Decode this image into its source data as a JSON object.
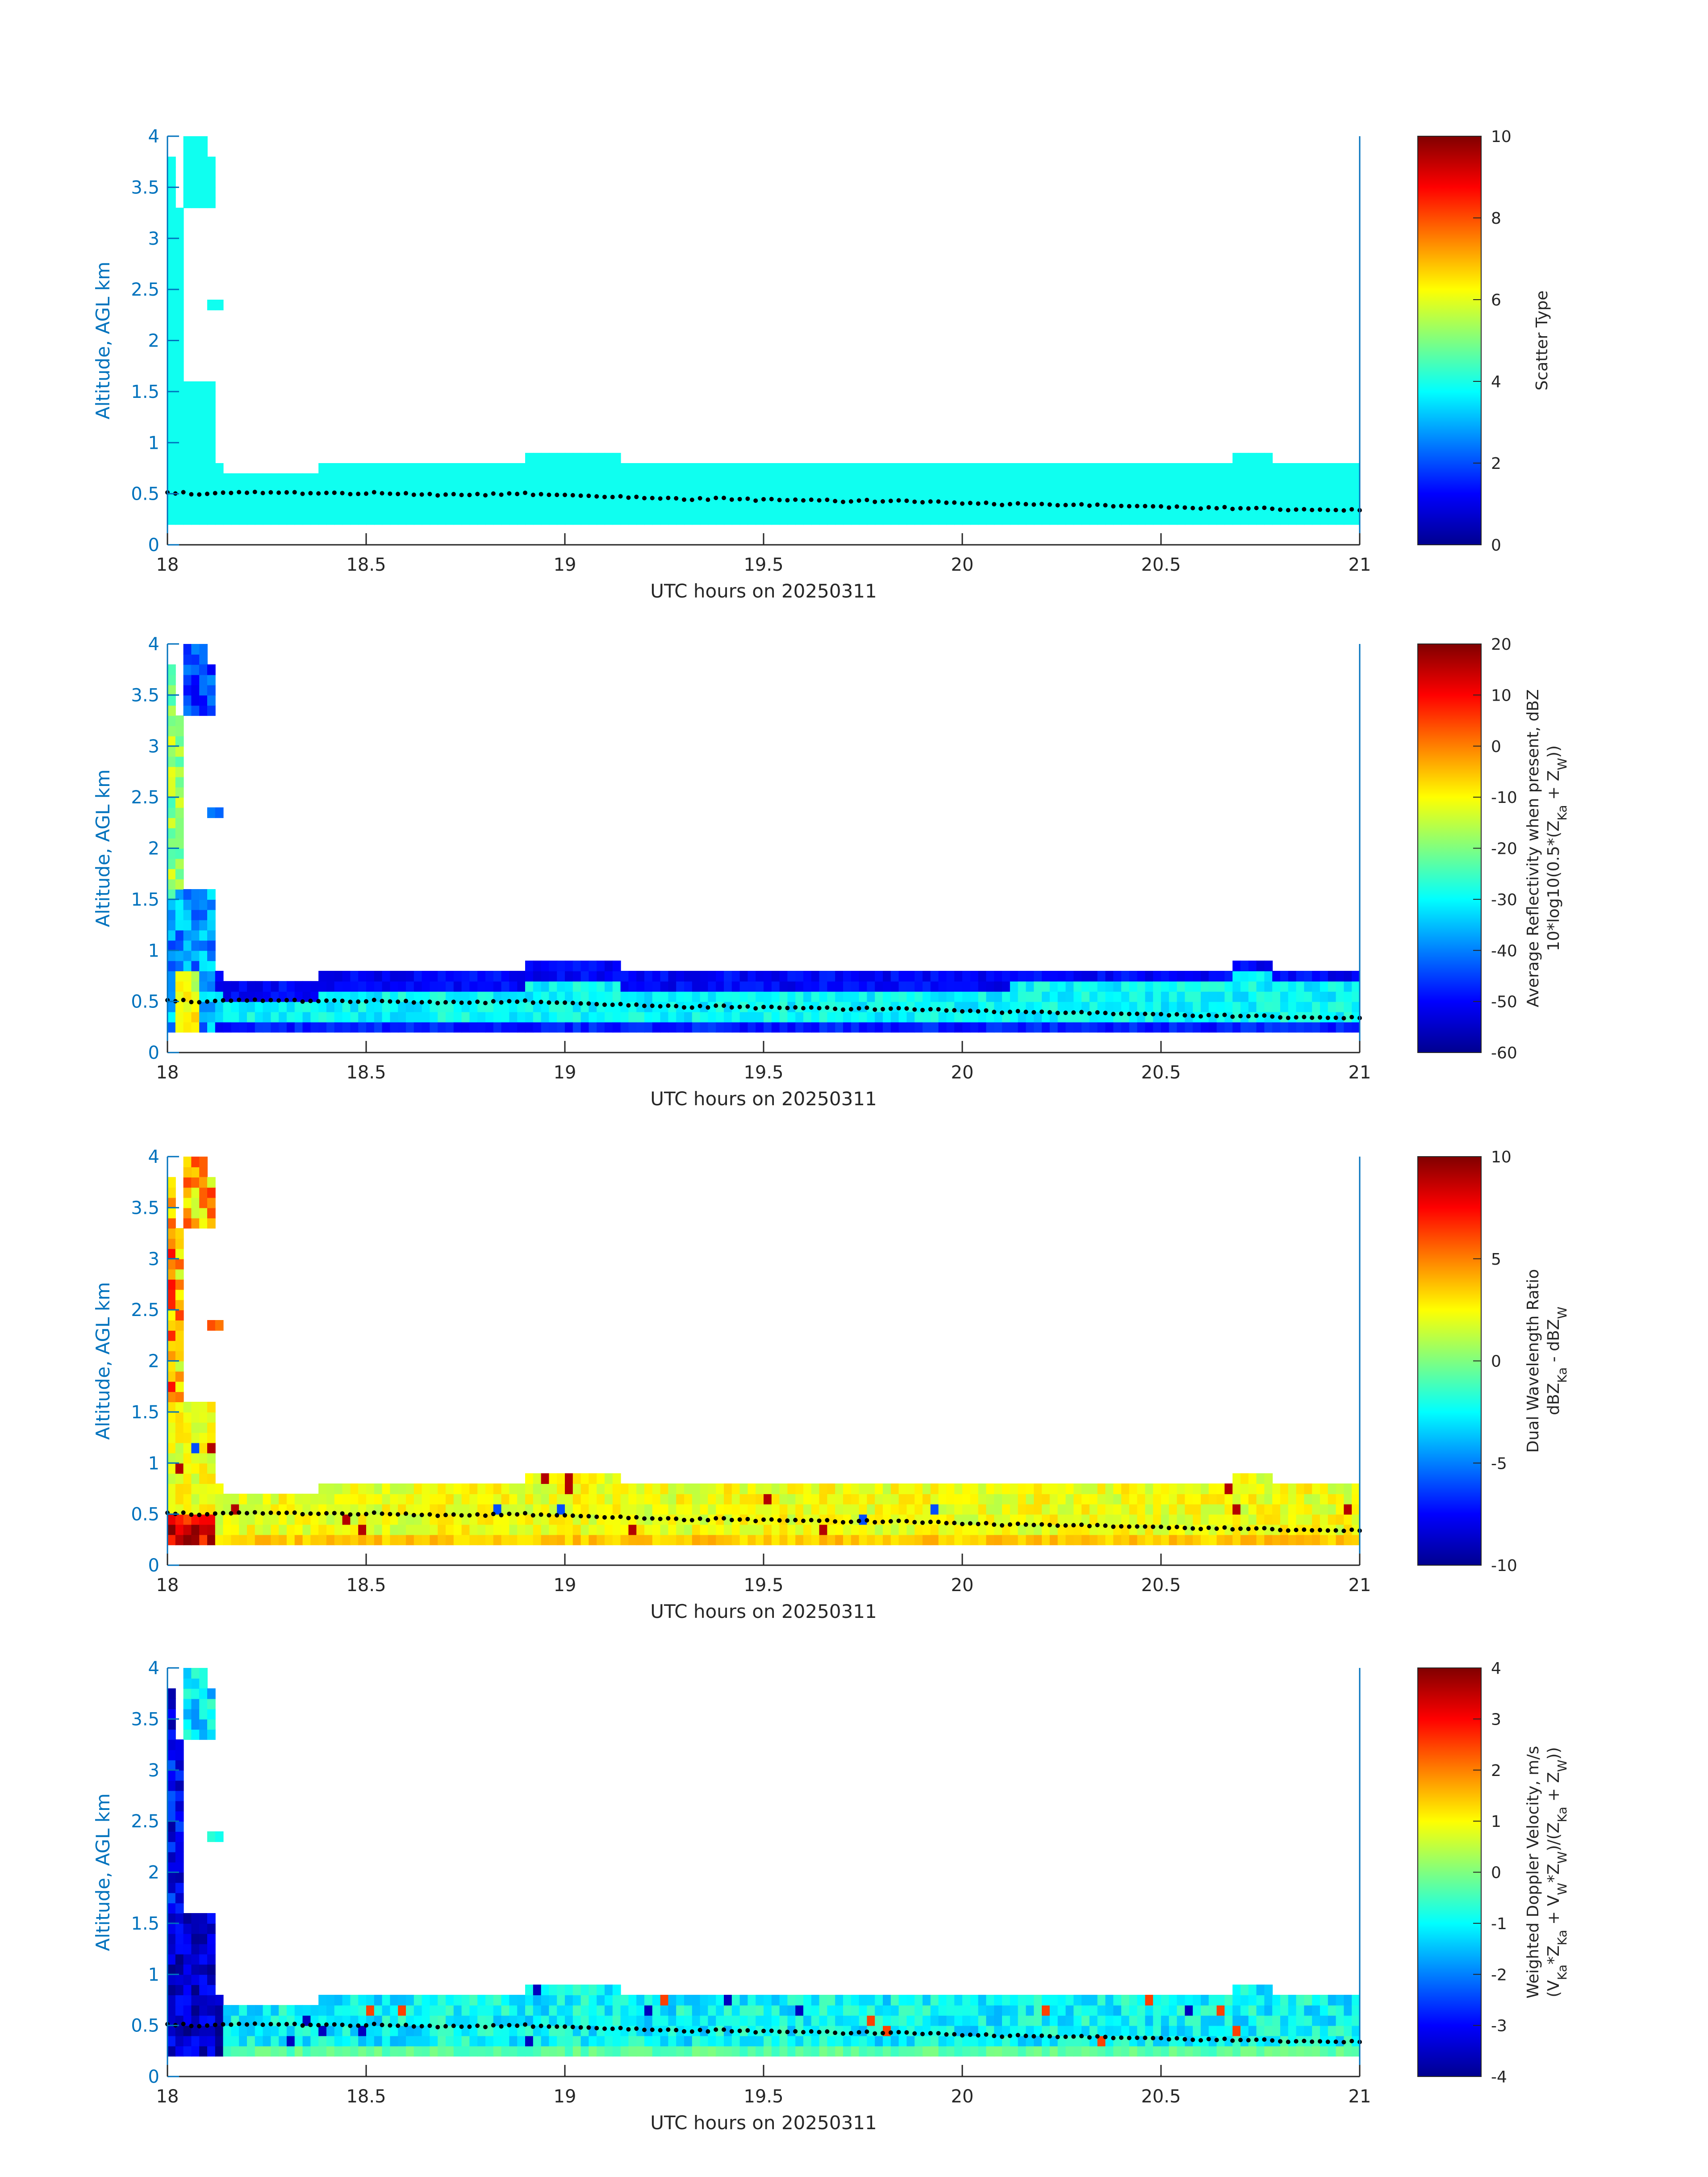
{
  "chart_data": [
    {
      "type": "heatmap",
      "xlabel": "UTC hours on 20250311",
      "ylabel": "Altitude, AGL km",
      "xlim": [
        18,
        21
      ],
      "ylim": [
        0,
        4
      ],
      "x_ticks": [
        "18",
        "18.5",
        "19",
        "19.5",
        "20",
        "20.5",
        "21"
      ],
      "y_ticks": [
        "0",
        "0.5",
        "1",
        "1.5",
        "2",
        "2.5",
        "3",
        "3.5",
        "4"
      ],
      "colorbar": {
        "label_lines": [
          "Scatter Type"
        ],
        "range": [
          0,
          10
        ],
        "ticks": [
          "0",
          "2",
          "4",
          "6",
          "8",
          "10"
        ],
        "colormap": "jet"
      },
      "field": "scatter"
    },
    {
      "type": "heatmap",
      "xlabel": "UTC hours on 20250311",
      "ylabel": "Altitude, AGL km",
      "xlim": [
        18,
        21
      ],
      "ylim": [
        0,
        4
      ],
      "x_ticks": [
        "18",
        "18.5",
        "19",
        "19.5",
        "20",
        "20.5",
        "21"
      ],
      "y_ticks": [
        "0",
        "0.5",
        "1",
        "1.5",
        "2",
        "2.5",
        "3",
        "3.5",
        "4"
      ],
      "colorbar": {
        "label_lines": [
          "Average Reflectivity when present, dBZ",
          "10*log10(0.5*(Z_Ka + Z_W))"
        ],
        "range": [
          -60,
          20
        ],
        "ticks": [
          "-60",
          "-50",
          "-40",
          "-30",
          "-20",
          "-10",
          "0",
          "10",
          "20"
        ],
        "colormap": "jet"
      },
      "field": "reflectivity"
    },
    {
      "type": "heatmap",
      "xlabel": "UTC hours on 20250311",
      "ylabel": "Altitude, AGL km",
      "xlim": [
        18,
        21
      ],
      "ylim": [
        0,
        4
      ],
      "x_ticks": [
        "18",
        "18.5",
        "19",
        "19.5",
        "20",
        "20.5",
        "21"
      ],
      "y_ticks": [
        "0",
        "0.5",
        "1",
        "1.5",
        "2",
        "2.5",
        "3",
        "3.5",
        "4"
      ],
      "colorbar": {
        "label_lines": [
          "Dual Wavelength Ratio",
          "dBZ_Ka - dBZ_W"
        ],
        "range": [
          -10,
          10
        ],
        "ticks": [
          "-10",
          "-5",
          "0",
          "5",
          "10"
        ],
        "colormap": "jet"
      },
      "field": "dwr"
    },
    {
      "type": "heatmap",
      "xlabel": "UTC hours on 20250311",
      "ylabel": "Altitude, AGL km",
      "xlim": [
        18,
        21
      ],
      "ylim": [
        0,
        4
      ],
      "x_ticks": [
        "18",
        "18.5",
        "19",
        "19.5",
        "20",
        "20.5",
        "21"
      ],
      "y_ticks": [
        "0",
        "0.5",
        "1",
        "1.5",
        "2",
        "2.5",
        "3",
        "3.5",
        "4"
      ],
      "colorbar": {
        "label_lines": [
          "Weighted Doppler Velocity, m/s",
          "(V_Ka*Z_Ka + V_W*Z_W)/(Z_Ka + Z_W))"
        ],
        "range": [
          -4,
          4
        ],
        "ticks": [
          "-4",
          "-3",
          "-2",
          "-1",
          "0",
          "1",
          "2",
          "3",
          "4"
        ],
        "colormap": "jet"
      },
      "field": "velocity"
    }
  ],
  "time_step_hours": 0.02,
  "altitude_step_km": 0.1,
  "cloud_top_km": [
    [
      18.0,
      1.55
    ],
    [
      18.04,
      1.55
    ],
    [
      18.06,
      1.55
    ],
    [
      18.1,
      1.55
    ],
    [
      18.12,
      0.75
    ],
    [
      18.15,
      0.65
    ],
    [
      18.37,
      0.65
    ],
    [
      18.38,
      0.75
    ],
    [
      18.8,
      0.75
    ],
    [
      18.88,
      0.75
    ],
    [
      18.89,
      0.85
    ],
    [
      19.12,
      0.85
    ],
    [
      19.14,
      0.75
    ],
    [
      20.1,
      0.75
    ],
    [
      20.12,
      0.8
    ],
    [
      20.65,
      0.8
    ],
    [
      20.67,
      0.9
    ],
    [
      20.75,
      0.9
    ],
    [
      20.77,
      0.8
    ],
    [
      21.0,
      0.8
    ]
  ],
  "cloud_base_km": 0.2,
  "upper_layer_km": [
    [
      18.0,
      1.5,
      3.75
    ],
    [
      18.02,
      1.6,
      3.3
    ],
    [
      18.04,
      1.7,
      1.7
    ],
    [
      18.05,
      3.3,
      4.0
    ],
    [
      18.07,
      3.5,
      4.0
    ],
    [
      18.09,
      3.3,
      3.8
    ],
    [
      18.11,
      2.3,
      2.4
    ]
  ],
  "boundary_layer_top_km": [
    [
      18.0,
      0.51
    ],
    [
      18.1,
      0.5
    ],
    [
      18.2,
      0.51
    ],
    [
      18.3,
      0.51
    ],
    [
      18.4,
      0.5
    ],
    [
      18.5,
      0.51
    ],
    [
      18.6,
      0.5
    ],
    [
      18.7,
      0.49
    ],
    [
      18.8,
      0.49
    ],
    [
      18.9,
      0.5
    ],
    [
      19.0,
      0.48
    ],
    [
      19.1,
      0.47
    ],
    [
      19.2,
      0.46
    ],
    [
      19.3,
      0.45
    ],
    [
      19.4,
      0.45
    ],
    [
      19.5,
      0.44
    ],
    [
      19.6,
      0.44
    ],
    [
      19.7,
      0.43
    ],
    [
      19.8,
      0.43
    ],
    [
      19.9,
      0.42
    ],
    [
      20.0,
      0.41
    ],
    [
      20.1,
      0.4
    ],
    [
      20.2,
      0.4
    ],
    [
      20.3,
      0.39
    ],
    [
      20.4,
      0.38
    ],
    [
      20.5,
      0.37
    ],
    [
      20.6,
      0.36
    ],
    [
      20.7,
      0.36
    ],
    [
      20.8,
      0.35
    ],
    [
      20.9,
      0.34
    ],
    [
      21.0,
      0.34
    ]
  ]
}
